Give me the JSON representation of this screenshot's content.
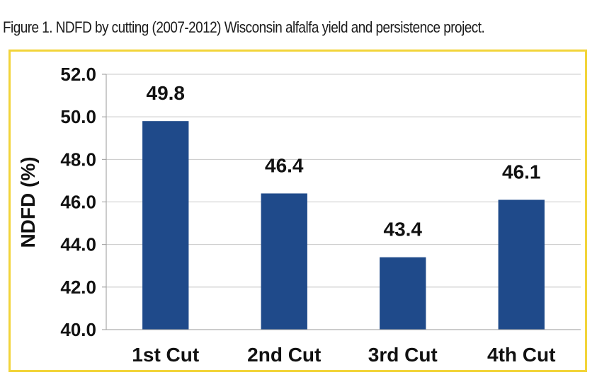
{
  "figure": {
    "caption": "Figure 1. NDFD by cutting (2007-2012) Wisconsin alfalfa yield and persistence project."
  },
  "chart_data": {
    "type": "bar",
    "categories": [
      "1st Cut",
      "2nd Cut",
      "3rd Cut",
      "4th Cut"
    ],
    "values": [
      49.8,
      46.4,
      43.4,
      46.1
    ],
    "data_labels": [
      "49.8",
      "46.4",
      "43.4",
      "46.1"
    ],
    "ylabel": "NDFD (%)",
    "xlabel": "",
    "ylim": [
      40.0,
      52.0
    ],
    "yticks": [
      "40.0",
      "42.0",
      "44.0",
      "46.0",
      "48.0",
      "50.0",
      "52.0"
    ],
    "grid": true,
    "bar_color": "#1f4a8a",
    "grid_color": "#c8c8c8",
    "frame_color": "#f2d43a"
  }
}
